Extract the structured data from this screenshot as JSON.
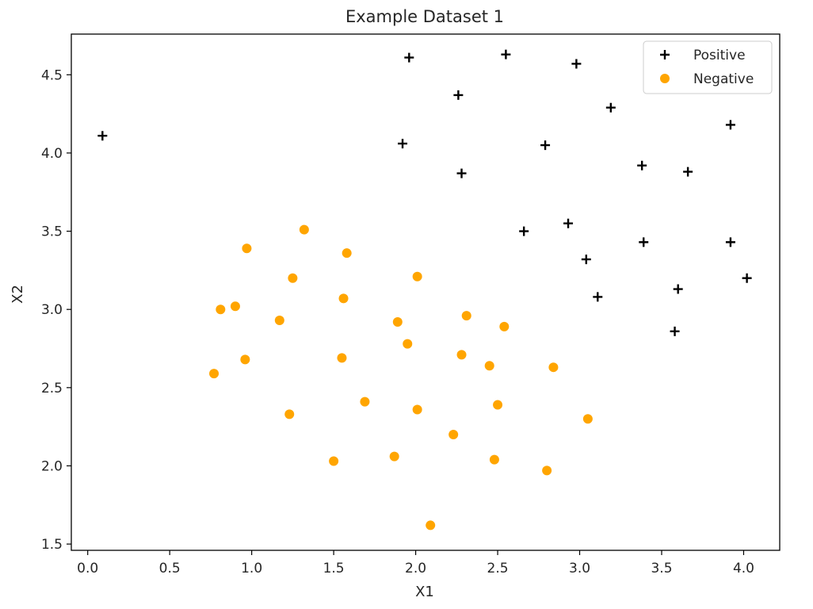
{
  "chart_data": {
    "type": "scatter",
    "title": "Example Dataset 1",
    "xlabel": "X1",
    "ylabel": "X2",
    "xlim": [
      -0.1,
      4.22
    ],
    "ylim": [
      1.46,
      4.76
    ],
    "xticks": [
      "0.0",
      "0.5",
      "1.0",
      "1.5",
      "2.0",
      "2.5",
      "3.0",
      "3.5",
      "4.0"
    ],
    "yticks": [
      "1.5",
      "2.0",
      "2.5",
      "3.0",
      "3.5",
      "4.0",
      "4.5"
    ],
    "grid": false,
    "legend_position": "top-right",
    "series": [
      {
        "name": "Positive",
        "marker": "plus",
        "color": "#000000",
        "points": [
          [
            0.09,
            4.11
          ],
          [
            1.96,
            4.61
          ],
          [
            2.55,
            4.63
          ],
          [
            2.98,
            4.57
          ],
          [
            2.26,
            4.37
          ],
          [
            3.19,
            4.29
          ],
          [
            3.92,
            4.18
          ],
          [
            1.92,
            4.06
          ],
          [
            2.79,
            4.05
          ],
          [
            3.38,
            3.92
          ],
          [
            2.28,
            3.87
          ],
          [
            3.66,
            3.88
          ],
          [
            2.66,
            3.5
          ],
          [
            2.93,
            3.55
          ],
          [
            3.39,
            3.43
          ],
          [
            3.92,
            3.43
          ],
          [
            3.04,
            3.32
          ],
          [
            4.02,
            3.2
          ],
          [
            3.6,
            3.13
          ],
          [
            3.11,
            3.08
          ],
          [
            3.58,
            2.86
          ]
        ]
      },
      {
        "name": "Negative",
        "marker": "circle",
        "color": "#FFA500",
        "points": [
          [
            1.32,
            3.51
          ],
          [
            0.97,
            3.39
          ],
          [
            1.58,
            3.36
          ],
          [
            1.25,
            3.2
          ],
          [
            2.01,
            3.21
          ],
          [
            0.81,
            3.0
          ],
          [
            0.9,
            3.02
          ],
          [
            1.56,
            3.07
          ],
          [
            1.17,
            2.93
          ],
          [
            1.89,
            2.92
          ],
          [
            2.31,
            2.96
          ],
          [
            2.54,
            2.89
          ],
          [
            1.95,
            2.78
          ],
          [
            2.28,
            2.71
          ],
          [
            0.96,
            2.68
          ],
          [
            1.55,
            2.69
          ],
          [
            2.45,
            2.64
          ],
          [
            2.84,
            2.63
          ],
          [
            0.77,
            2.59
          ],
          [
            1.69,
            2.41
          ],
          [
            2.5,
            2.39
          ],
          [
            2.01,
            2.36
          ],
          [
            1.23,
            2.33
          ],
          [
            3.05,
            2.3
          ],
          [
            2.23,
            2.2
          ],
          [
            1.87,
            2.06
          ],
          [
            1.5,
            2.03
          ],
          [
            2.48,
            2.04
          ],
          [
            2.8,
            1.97
          ],
          [
            2.09,
            1.62
          ]
        ]
      }
    ]
  }
}
